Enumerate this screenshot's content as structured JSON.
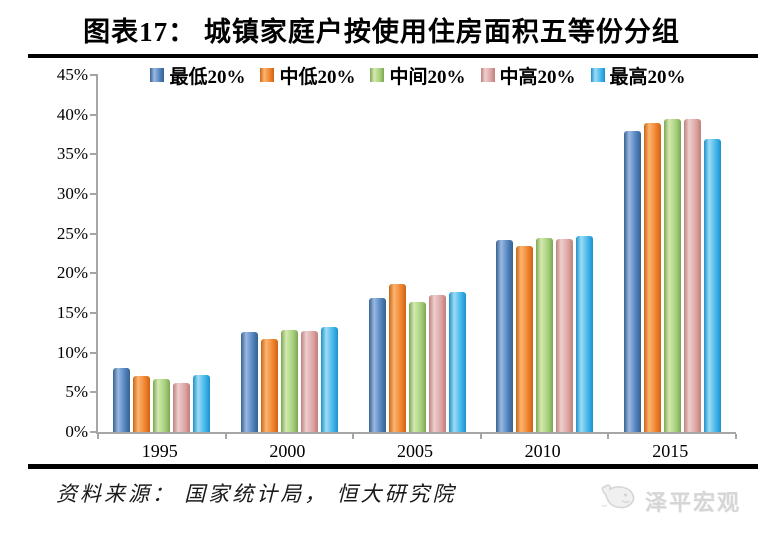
{
  "title": "图表17： 城镇家庭户按使用住房面积五等份分组",
  "source": "资料来源： 国家统计局， 恒大研究院",
  "logo": {
    "icon": "whale-icon",
    "text": "泽平宏观",
    "color": "#d6d6d6"
  },
  "chart_data": {
    "type": "bar",
    "title": "图表17： 城镇家庭户按使用住房面积五等份分组",
    "categories": [
      "1995",
      "2000",
      "2005",
      "2010",
      "2015"
    ],
    "series": [
      {
        "name": "最低20%",
        "color": "#4f81bd",
        "color_light": "#9ab9e2",
        "color_dark": "#38618f",
        "values": [
          8.1,
          12.6,
          16.9,
          24.2,
          38.0
        ]
      },
      {
        "name": "中低20%",
        "color": "#ef822c",
        "color_light": "#fbb571",
        "color_dark": "#cc6514",
        "values": [
          7.0,
          11.7,
          18.7,
          23.4,
          38.9
        ]
      },
      {
        "name": "中间20%",
        "color": "#a4cf78",
        "color_light": "#d4e9b0",
        "color_dark": "#7fa653",
        "values": [
          6.7,
          12.8,
          16.4,
          24.4,
          39.4
        ]
      },
      {
        "name": "中高20%",
        "color": "#dba3a1",
        "color_light": "#eecfcd",
        "color_dark": "#bd807e",
        "values": [
          6.2,
          12.7,
          17.3,
          24.3,
          39.4
        ]
      },
      {
        "name": "最高20%",
        "color": "#41b4e9",
        "color_light": "#9ddcf5",
        "color_dark": "#1b90cc",
        "values": [
          7.2,
          13.3,
          17.6,
          24.7,
          36.9
        ]
      }
    ],
    "xlabel": "",
    "ylabel": "",
    "ylim": [
      0,
      45
    ],
    "ystep": 5,
    "ytick_labels": [
      "0%",
      "5%",
      "10%",
      "15%",
      "20%",
      "25%",
      "30%",
      "35%",
      "40%",
      "45%"
    ],
    "legend_position": "top",
    "grid": false,
    "axis_color": "#a6a6a6"
  }
}
